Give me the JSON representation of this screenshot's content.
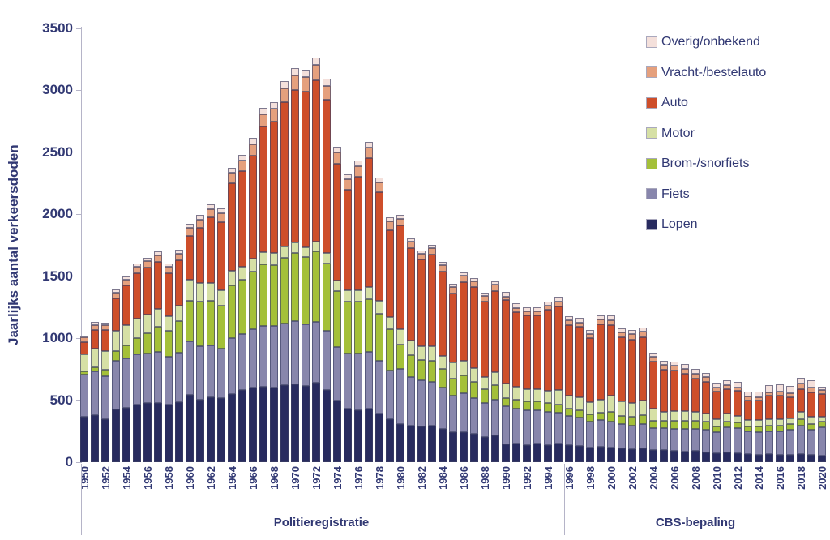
{
  "y_axis": {
    "title": "Jaarlijks aantal verkeersdoden",
    "ticks": [
      0,
      500,
      1000,
      1500,
      2000,
      2500,
      3000,
      3500
    ],
    "max": 3500
  },
  "x_axis": {
    "tick_labels": [
      "1950",
      "1952",
      "1954",
      "1956",
      "1958",
      "1960",
      "1962",
      "1964",
      "1966",
      "1968",
      "1970",
      "1972",
      "1974",
      "1976",
      "1978",
      "1980",
      "1982",
      "1984",
      "1986",
      "1988",
      "1990",
      "1992",
      "1994",
      "1996",
      "1998",
      "2000",
      "2002",
      "2004",
      "2006",
      "2008",
      "2010",
      "2012",
      "2014",
      "2016",
      "2018",
      "2020"
    ],
    "group_labels": [
      {
        "label": "Politieregistratie",
        "from": 1950,
        "to": 1995
      },
      {
        "label": "CBS-bepaling",
        "from": 1996,
        "to": 2020
      }
    ]
  },
  "legend": [
    {
      "label": "Overig/onbekend",
      "color": "#F4E0DB"
    },
    {
      "label": "Vracht-/bestelauto",
      "color": "#E5A07D"
    },
    {
      "label": "Auto",
      "color": "#CE4E2A"
    },
    {
      "label": "Motor",
      "color": "#D6E0A5"
    },
    {
      "label": "Brom-/snorfiets",
      "color": "#A4C039"
    },
    {
      "label": "Fiets",
      "color": "#8886AC"
    },
    {
      "label": "Lopen",
      "color": "#282B5F"
    }
  ],
  "colors": {
    "text": "#313873",
    "axis_line": "#b5b4c8",
    "segment_border": "#3e4066",
    "background": "#ffffff"
  },
  "chart_data": {
    "type": "bar",
    "stacked": true,
    "title": "",
    "xlabel": "",
    "ylabel": "Jaarlijks aantal verkeersdoden",
    "ylim": [
      0,
      3500
    ],
    "grid": false,
    "legend_position": "top-right",
    "x_range": [
      1950,
      2020
    ],
    "stack_order": "bottom-to-top",
    "series": [
      {
        "name": "Lopen",
        "key": "lopen",
        "color": "#282B5F",
        "values": [
          365,
          380,
          350,
          425,
          440,
          465,
          475,
          480,
          465,
          485,
          545,
          505,
          525,
          520,
          550,
          585,
          600,
          610,
          605,
          620,
          630,
          615,
          640,
          585,
          500,
          435,
          420,
          430,
          390,
          345,
          310,
          295,
          290,
          295,
          270,
          245,
          245,
          230,
          205,
          215,
          145,
          150,
          140,
          150,
          140,
          150,
          135,
          130,
          120,
          125,
          115,
          110,
          105,
          110,
          95,
          95,
          90,
          85,
          90,
          80,
          75,
          80,
          75,
          65,
          60,
          65,
          60,
          60,
          65,
          60,
          55
        ]
      },
      {
        "name": "Fiets",
        "key": "fiets",
        "color": "#8886AC",
        "values": [
          340,
          350,
          345,
          395,
          400,
          405,
          400,
          410,
          385,
          400,
          430,
          430,
          415,
          395,
          450,
          450,
          475,
          490,
          495,
          500,
          510,
          495,
          490,
          475,
          430,
          440,
          455,
          460,
          425,
          395,
          445,
          390,
          370,
          355,
          335,
          290,
          310,
          290,
          275,
          290,
          305,
          280,
          280,
          270,
          265,
          250,
          235,
          230,
          210,
          215,
          215,
          195,
          190,
          195,
          180,
          180,
          180,
          185,
          180,
          185,
          165,
          200,
          200,
          185,
          185,
          185,
          190,
          205,
          230,
          205,
          229
        ]
      },
      {
        "name": "Brom-/snorfiets",
        "key": "brom_snorfiets",
        "color": "#A4C039",
        "values": [
          25,
          35,
          50,
          75,
          100,
          130,
          165,
          200,
          210,
          255,
          330,
          360,
          365,
          350,
          425,
          435,
          460,
          495,
          490,
          530,
          550,
          545,
          570,
          540,
          450,
          420,
          420,
          425,
          385,
          330,
          195,
          180,
          165,
          170,
          150,
          140,
          145,
          130,
          110,
          115,
          70,
          75,
          70,
          70,
          70,
          65,
          60,
          60,
          55,
          60,
          75,
          70,
          70,
          75,
          60,
          60,
          65,
          65,
          65,
          60,
          45,
          50,
          45,
          40,
          45,
          45,
          45,
          40,
          50,
          45,
          45
        ]
      },
      {
        "name": "Motor",
        "key": "motor",
        "color": "#D6E0A5",
        "values": [
          140,
          150,
          150,
          165,
          165,
          160,
          150,
          145,
          120,
          120,
          165,
          150,
          140,
          120,
          120,
          110,
          105,
          100,
          95,
          90,
          85,
          80,
          80,
          85,
          85,
          90,
          95,
          100,
          100,
          100,
          120,
          115,
          110,
          115,
          105,
          130,
          120,
          110,
          100,
          105,
          115,
          105,
          100,
          100,
          100,
          120,
          110,
          105,
          100,
          105,
          130,
          115,
          110,
          115,
          95,
          70,
          75,
          75,
          70,
          65,
          60,
          60,
          55,
          50,
          50,
          55,
          55,
          50,
          60,
          55,
          40
        ]
      },
      {
        "name": "Auto",
        "key": "auto",
        "color": "#CE4E2A",
        "values": [
          100,
          154,
          171,
          262,
          323,
          364,
          383,
          381,
          346,
          369,
          356,
          444,
          529,
          554,
          708,
          769,
          836,
          1011,
          1065,
          1162,
          1228,
          1256,
          1299,
          1237,
          941,
          811,
          910,
          1036,
          876,
          704,
          839,
          747,
          699,
          741,
          680,
          558,
          633,
          652,
          608,
          658,
          671,
          603,
          597,
          596,
          653,
          669,
          566,
          565,
          514,
          607,
          571,
          518,
          516,
          515,
          383,
          340,
          327,
          305,
          271,
          260,
          227,
          197,
          198,
          160,
          157,
          186,
          189,
          170,
          183,
          196,
          181
        ]
      },
      {
        "name": "Vracht-/bestelauto",
        "key": "vracht_bestelauto",
        "color": "#E5A07D",
        "values": [
          35,
          40,
          40,
          45,
          45,
          50,
          50,
          55,
          50,
          55,
          65,
          70,
          70,
          70,
          80,
          85,
          90,
          100,
          105,
          115,
          120,
          120,
          125,
          115,
          95,
          85,
          90,
          90,
          80,
          70,
          55,
          50,
          48,
          50,
          48,
          50,
          50,
          48,
          45,
          48,
          30,
          30,
          30,
          30,
          32,
          40,
          38,
          38,
          35,
          38,
          42,
          40,
          40,
          42,
          38,
          40,
          40,
          40,
          38,
          35,
          30,
          32,
          32,
          28,
          28,
          30,
          32,
          30,
          45,
          40,
          30
        ]
      },
      {
        "name": "Overig/onbekend",
        "key": "overig_onbekend",
        "color": "#F4E0DB",
        "values": [
          16,
          20,
          20,
          25,
          25,
          28,
          28,
          30,
          28,
          30,
          35,
          38,
          38,
          36,
          42,
          45,
          48,
          52,
          52,
          56,
          58,
          56,
          60,
          55,
          45,
          40,
          42,
          42,
          38,
          33,
          32,
          30,
          28,
          30,
          27,
          25,
          26,
          25,
          23,
          25,
          40,
          38,
          36,
          36,
          38,
          40,
          36,
          35,
          32,
          36,
          38,
          35,
          35,
          36,
          30,
          32,
          34,
          36,
          36,
          35,
          38,
          42,
          45,
          42,
          45,
          55,
          58,
          58,
          45,
          60,
          30
        ]
      }
    ]
  }
}
